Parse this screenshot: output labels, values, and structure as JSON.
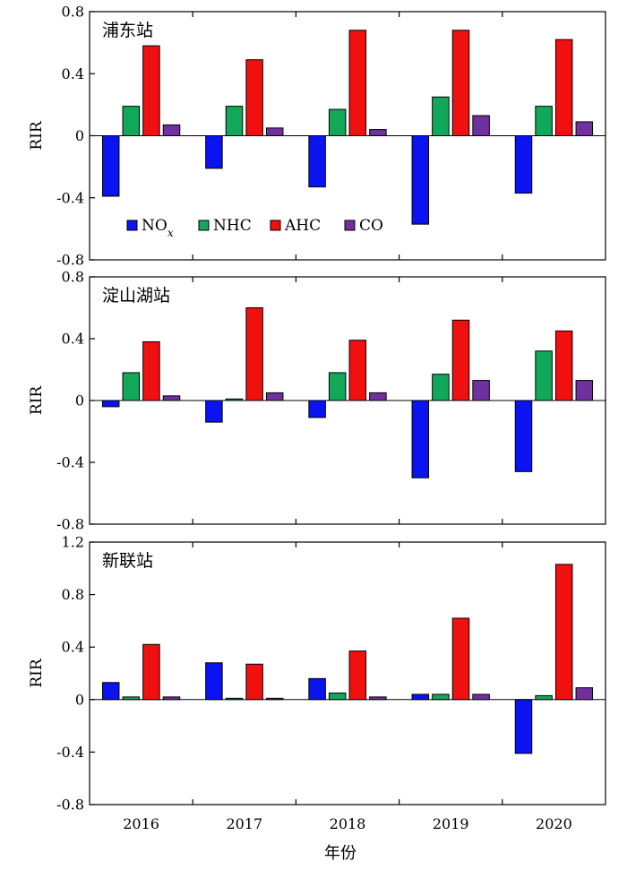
{
  "chart_data": {
    "type": "bar",
    "xlabel": "年份",
    "categories": [
      "2016",
      "2017",
      "2018",
      "2019",
      "2020"
    ],
    "colors": {
      "NOx": "#0a14f0",
      "NHC": "#11a85a",
      "AHC": "#f01010",
      "CO": "#7030a0"
    },
    "legend": {
      "placement": "bottom-left of top panel",
      "items": [
        {
          "key": "NOx",
          "base": "NO",
          "sub": "x"
        },
        {
          "key": "NHC",
          "label": "NHC"
        },
        {
          "key": "AHC",
          "label": "AHC"
        },
        {
          "key": "CO",
          "label": "CO"
        }
      ]
    },
    "panels": [
      {
        "title": "浦东站",
        "ylabel": "RIR",
        "ylim": [
          -0.8,
          0.8
        ],
        "yticks": [
          "-0.8",
          "-0.4",
          "0",
          "0.4",
          "0.8"
        ],
        "series": [
          {
            "key": "NOx",
            "values": [
              -0.39,
              -0.21,
              -0.33,
              -0.57,
              -0.37
            ]
          },
          {
            "key": "NHC",
            "values": [
              0.19,
              0.19,
              0.17,
              0.25,
              0.19
            ]
          },
          {
            "key": "AHC",
            "values": [
              0.58,
              0.49,
              0.68,
              0.68,
              0.62
            ]
          },
          {
            "key": "CO",
            "values": [
              0.07,
              0.05,
              0.04,
              0.13,
              0.09
            ]
          }
        ]
      },
      {
        "title": "淀山湖站",
        "ylabel": "RIR",
        "ylim": [
          -0.8,
          0.8
        ],
        "yticks": [
          "-0.8",
          "-0.4",
          "0",
          "0.4",
          "0.8"
        ],
        "series": [
          {
            "key": "NOx",
            "values": [
              -0.04,
              -0.14,
              -0.11,
              -0.5,
              -0.46
            ]
          },
          {
            "key": "NHC",
            "values": [
              0.18,
              0.01,
              0.18,
              0.17,
              0.32
            ]
          },
          {
            "key": "AHC",
            "values": [
              0.38,
              0.6,
              0.39,
              0.52,
              0.45
            ]
          },
          {
            "key": "CO",
            "values": [
              0.03,
              0.05,
              0.05,
              0.13,
              0.13
            ]
          }
        ]
      },
      {
        "title": "新联站",
        "ylabel": "RIR",
        "ylim": [
          -0.8,
          1.2
        ],
        "yticks": [
          "-0.8",
          "-0.4",
          "0",
          "0.4",
          "0.8",
          "1.2"
        ],
        "series": [
          {
            "key": "NOx",
            "values": [
              0.13,
              0.28,
              0.16,
              0.04,
              -0.41
            ]
          },
          {
            "key": "NHC",
            "values": [
              0.02,
              0.01,
              0.05,
              0.04,
              0.03
            ]
          },
          {
            "key": "AHC",
            "values": [
              0.42,
              0.27,
              0.37,
              0.62,
              1.03
            ]
          },
          {
            "key": "CO",
            "values": [
              0.02,
              0.01,
              0.02,
              0.04,
              0.09
            ]
          }
        ]
      }
    ]
  }
}
